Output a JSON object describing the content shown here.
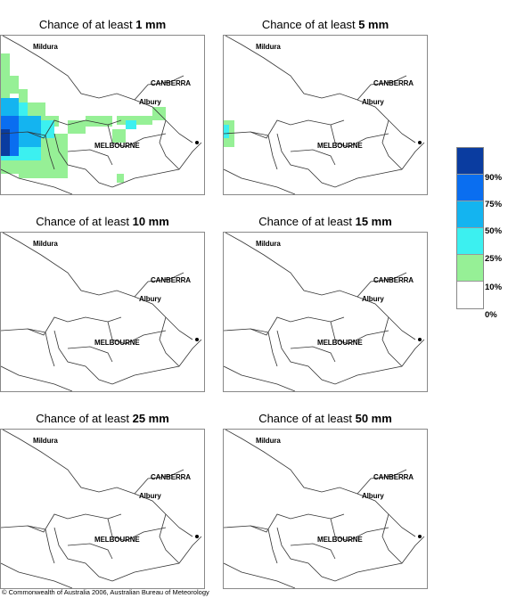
{
  "panels": [
    {
      "prefix": "Chance of at least ",
      "amount": "1 mm"
    },
    {
      "prefix": "Chance of at least ",
      "amount": "5 mm"
    },
    {
      "prefix": "Chance of at least ",
      "amount": "10 mm"
    },
    {
      "prefix": "Chance of at least ",
      "amount": "15 mm"
    },
    {
      "prefix": "Chance of at least ",
      "amount": "25 mm"
    },
    {
      "prefix": "Chance of at least ",
      "amount": "50 mm"
    }
  ],
  "cities": {
    "mildura": "Mildura",
    "canberra": "CANBERRA",
    "albury": "Albury",
    "melbourne": "MELBOURNE"
  },
  "legend": {
    "labels": [
      "90%",
      "75%",
      "50%",
      "25%",
      "10%",
      "0%"
    ],
    "colors": [
      "#0a3ca0",
      "#0a6ef0",
      "#14b4f0",
      "#3cf0f0",
      "#96f096",
      "#ffffff"
    ]
  },
  "copyright": "© Commonwealth of Australia 2006, Australian Bureau of Meteorology"
}
